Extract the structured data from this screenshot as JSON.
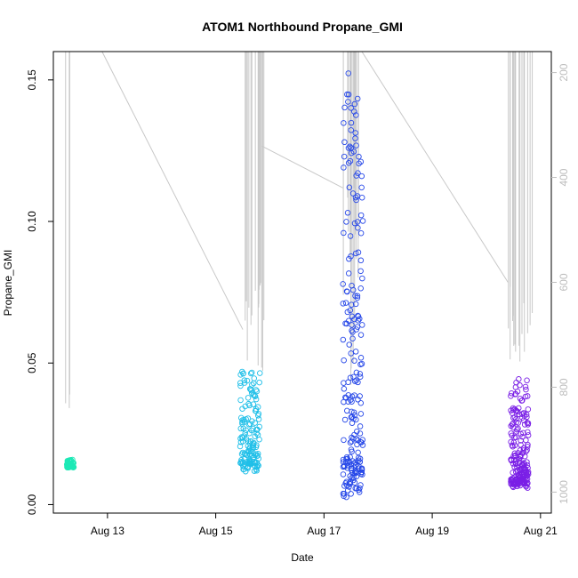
{
  "chart_data": {
    "type": "scatter",
    "title": "ATOM1 Northbound Propane_GMI",
    "xlabel": "Date",
    "ylabel": "Propane_GMI",
    "x_unit": "days (August)",
    "xlim": [
      12,
      21.2
    ],
    "ylim": [
      -0.003,
      0.16
    ],
    "x_ticks": [
      {
        "value": 13,
        "label": "Aug 13"
      },
      {
        "value": 15,
        "label": "Aug 15"
      },
      {
        "value": 17,
        "label": "Aug 17"
      },
      {
        "value": 19,
        "label": "Aug 19"
      },
      {
        "value": 21,
        "label": "Aug 21"
      }
    ],
    "y_ticks": [
      {
        "value": 0.0,
        "label": "0.00"
      },
      {
        "value": 0.05,
        "label": "0.05"
      },
      {
        "value": 0.1,
        "label": "0.10"
      },
      {
        "value": 0.15,
        "label": "0.15"
      }
    ],
    "right_axis": {
      "color": "#bdbdbd",
      "reversed": true,
      "lim": [
        1040,
        160
      ],
      "ticks": [
        {
          "value": 200,
          "label": "200"
        },
        {
          "value": 400,
          "label": "400"
        },
        {
          "value": 600,
          "label": "600"
        },
        {
          "value": 800,
          "label": "800"
        },
        {
          "value": 1000,
          "label": "1000"
        }
      ]
    },
    "secondary_line_color": "#c8c8c8",
    "point_groups": [
      {
        "day_start": 12.25,
        "day_end": 12.38,
        "y_min": 0.013,
        "y_max": 0.016,
        "count": 60,
        "color": "#1de9b6"
      },
      {
        "day_start": 15.45,
        "day_end": 15.82,
        "y_min": 0.011,
        "y_max": 0.049,
        "count": 150,
        "color": "#1fbfe8"
      },
      {
        "day_start": 17.35,
        "day_end": 17.72,
        "y_min": 0.002,
        "y_max": 0.154,
        "count": 220,
        "color": "#2748e8"
      },
      {
        "day_start": 20.45,
        "day_end": 20.78,
        "y_min": 0.005,
        "y_max": 0.045,
        "count": 200,
        "color": "#7a1fe6"
      }
    ]
  }
}
